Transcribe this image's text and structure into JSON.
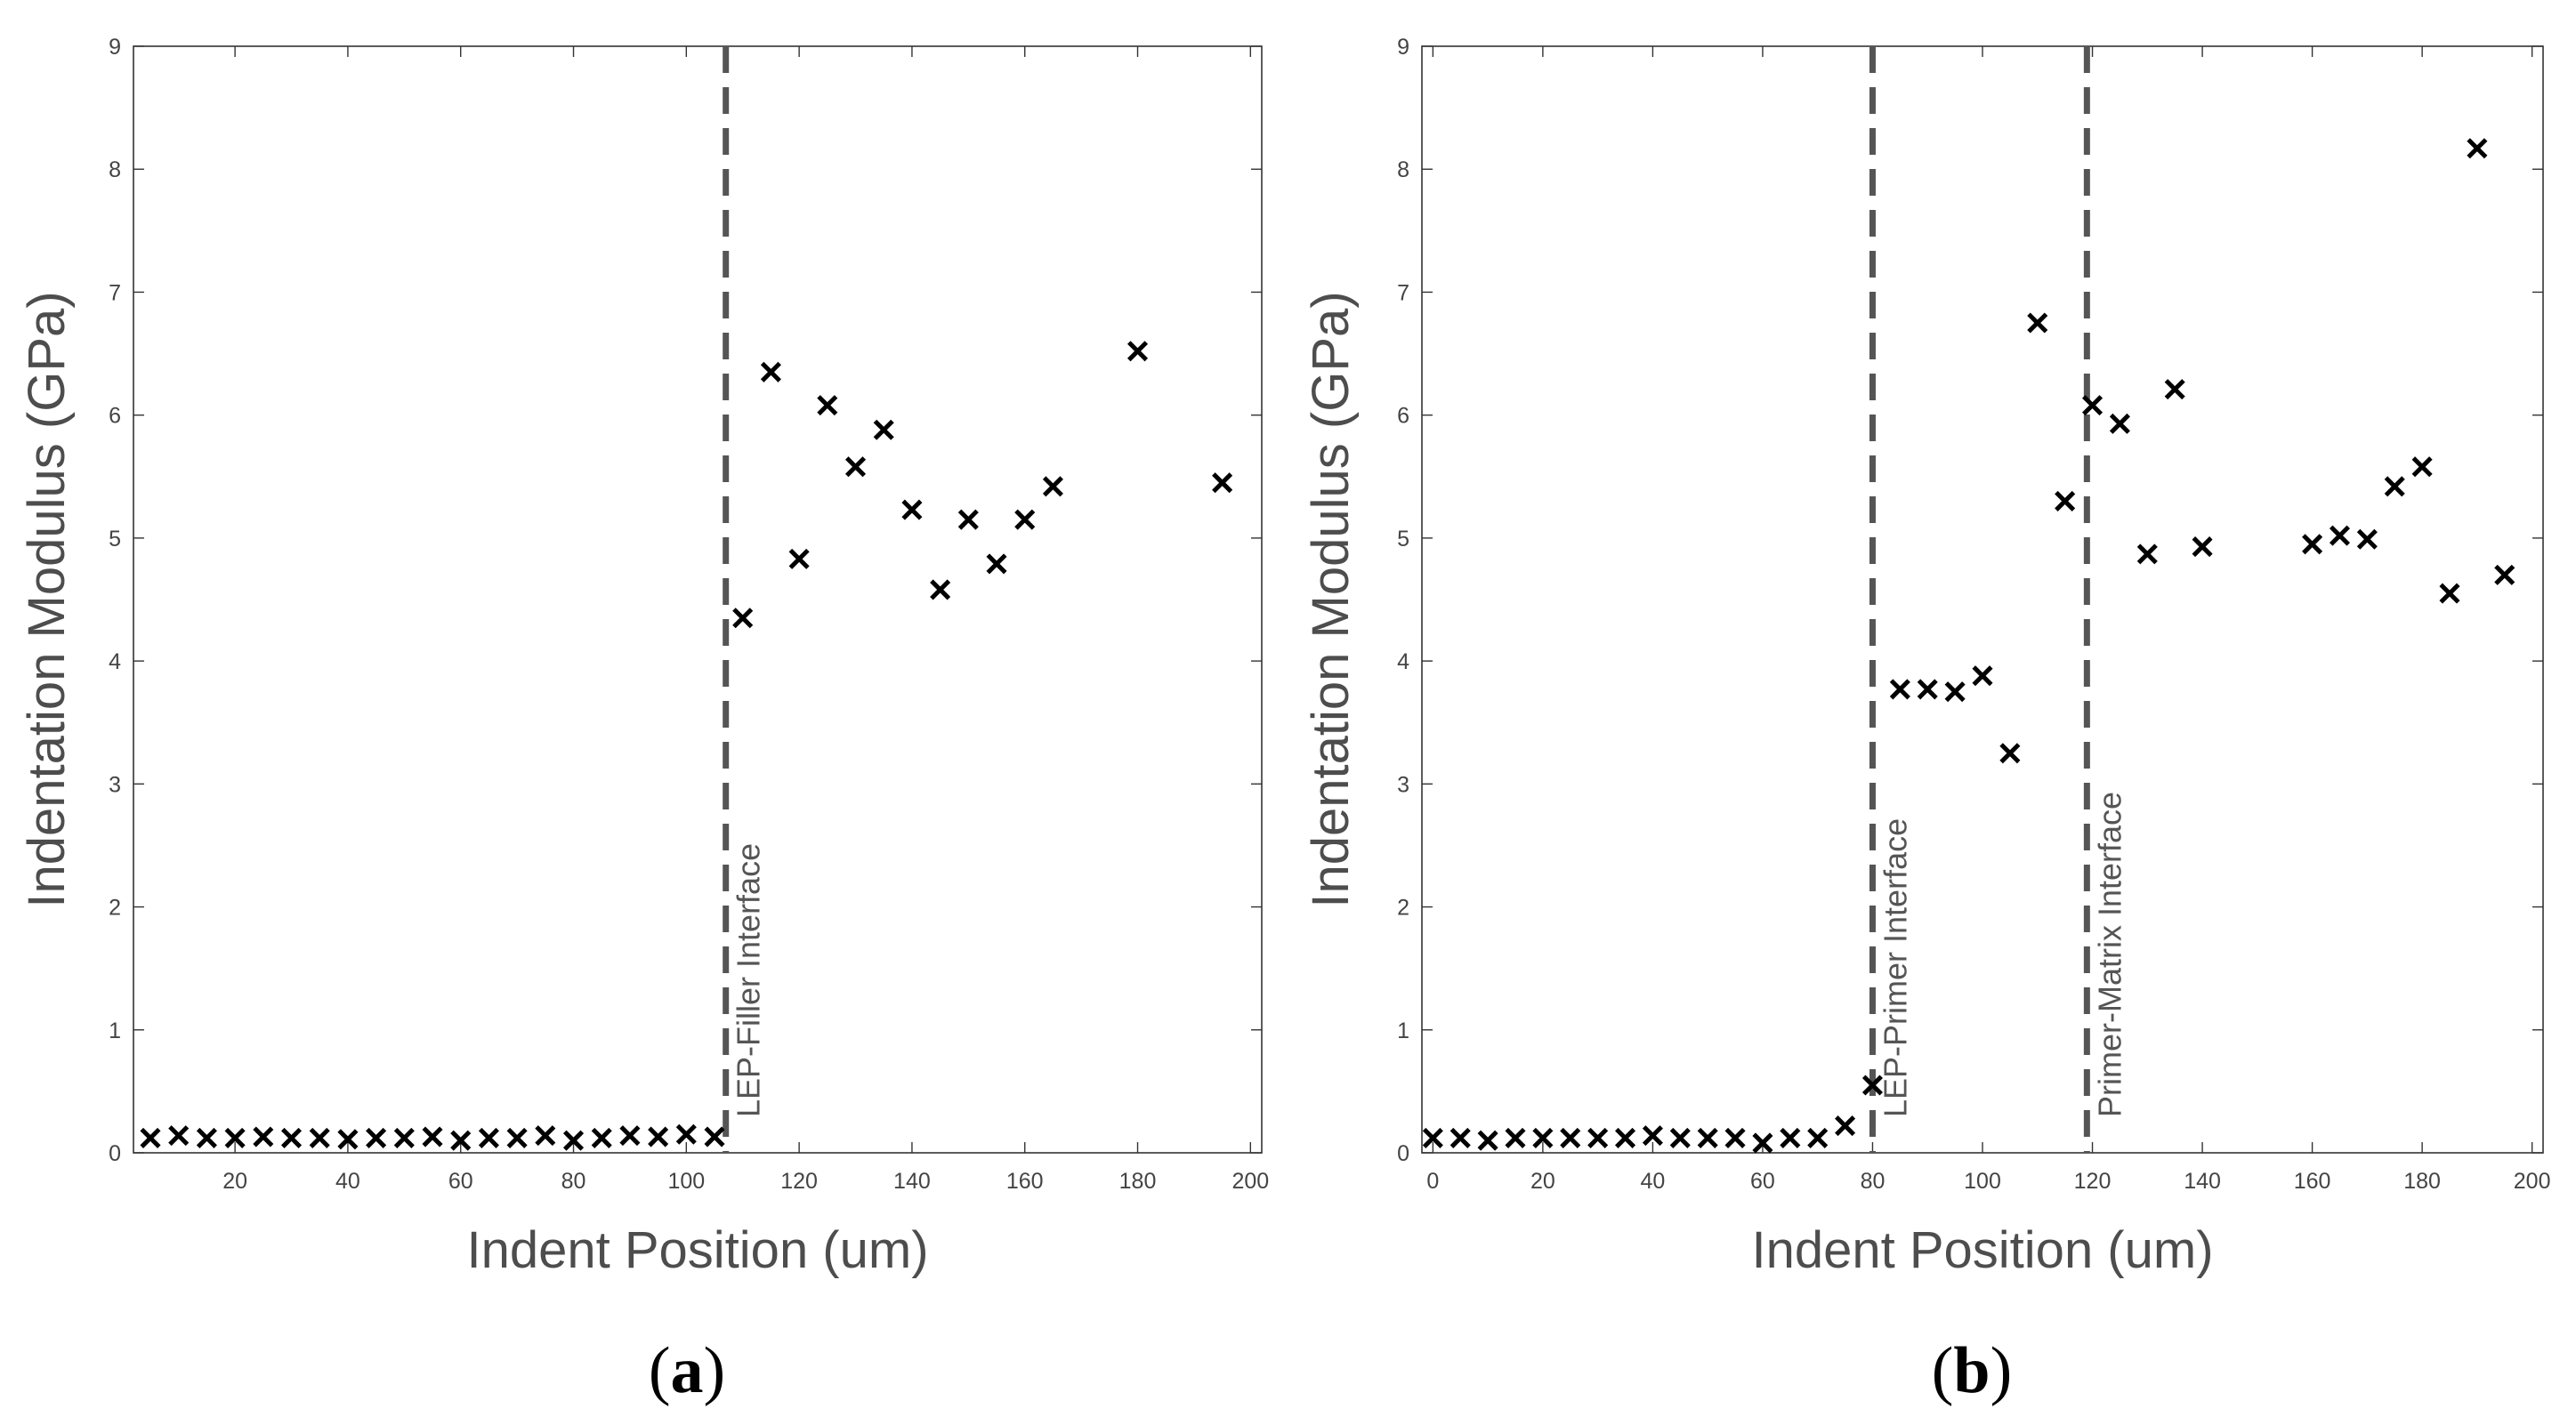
{
  "chart_data": [
    {
      "type": "scatter",
      "id": "a",
      "panel_label": "(a)",
      "panel_letter": "a",
      "xlabel": "Indent Position (um)",
      "ylabel": "Indentation Modulus (GPa)",
      "xlim": [
        2,
        202
      ],
      "ylim": [
        0,
        9
      ],
      "xticks": [
        20,
        40,
        60,
        80,
        100,
        120,
        140,
        160,
        180,
        200
      ],
      "yticks": [
        0,
        1,
        2,
        3,
        4,
        5,
        6,
        7,
        8,
        9
      ],
      "marker": "x",
      "series": [
        {
          "name": "Indentation Modulus",
          "x": [
            5,
            10,
            15,
            20,
            25,
            30,
            35,
            40,
            45,
            50,
            55,
            60,
            65,
            70,
            75,
            80,
            85,
            90,
            95,
            100,
            105,
            110,
            115,
            120,
            125,
            130,
            135,
            140,
            145,
            150,
            155,
            160,
            165,
            180,
            195
          ],
          "y": [
            0.12,
            0.14,
            0.12,
            0.12,
            0.13,
            0.12,
            0.12,
            0.11,
            0.12,
            0.12,
            0.13,
            0.1,
            0.12,
            0.12,
            0.14,
            0.1,
            0.12,
            0.14,
            0.13,
            0.15,
            0.13,
            4.35,
            6.35,
            4.83,
            6.08,
            5.58,
            5.88,
            5.23,
            4.58,
            5.15,
            4.79,
            5.15,
            5.42,
            6.52,
            5.45
          ]
        }
      ],
      "vlines": [
        {
          "x": 107,
          "label": "LEP-Filler Interface"
        }
      ]
    },
    {
      "type": "scatter",
      "id": "b",
      "panel_label": "(b)",
      "panel_letter": "b",
      "xlabel": "Indent Position (um)",
      "ylabel": "Indentation Modulus (GPa)",
      "xlim": [
        -2,
        202
      ],
      "ylim": [
        0,
        9
      ],
      "xticks": [
        0,
        20,
        40,
        60,
        80,
        100,
        120,
        140,
        160,
        180,
        200
      ],
      "yticks": [
        0,
        1,
        2,
        3,
        4,
        5,
        6,
        7,
        8,
        9
      ],
      "marker": "x",
      "series": [
        {
          "name": "Indentation Modulus",
          "x": [
            0,
            5,
            10,
            15,
            20,
            25,
            30,
            35,
            40,
            45,
            50,
            55,
            60,
            65,
            70,
            75,
            80,
            85,
            90,
            95,
            100,
            105,
            110,
            115,
            120,
            125,
            130,
            135,
            140,
            160,
            165,
            170,
            175,
            180,
            185,
            190,
            195
          ],
          "y": [
            0.12,
            0.12,
            0.1,
            0.12,
            0.12,
            0.12,
            0.12,
            0.12,
            0.14,
            0.12,
            0.12,
            0.12,
            0.08,
            0.12,
            0.12,
            0.22,
            0.55,
            3.77,
            3.77,
            3.75,
            3.88,
            3.25,
            6.75,
            5.3,
            6.08,
            5.93,
            4.87,
            6.21,
            4.93,
            4.95,
            5.02,
            4.99,
            5.42,
            5.58,
            4.55,
            8.17,
            4.7
          ]
        }
      ],
      "vlines": [
        {
          "x": 80,
          "label": "LEP-Primer Interface"
        },
        {
          "x": 119,
          "label": "Primer-Matrix Interface"
        }
      ]
    }
  ]
}
